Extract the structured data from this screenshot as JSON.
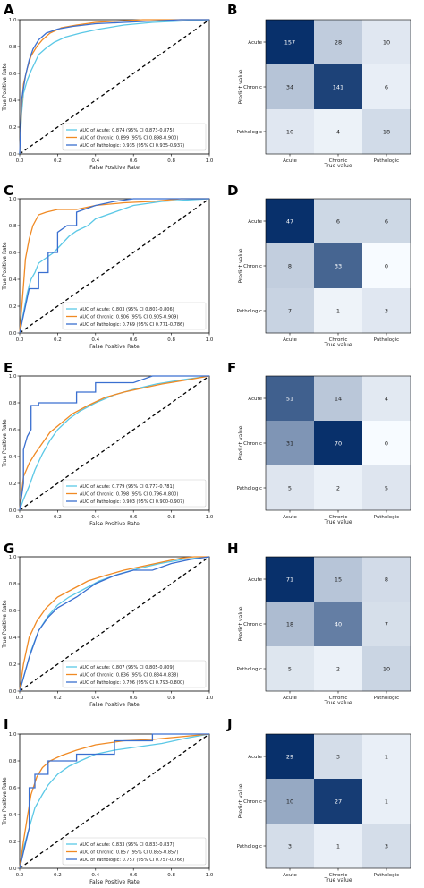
{
  "colors": {
    "Acute": "#5bc8e6",
    "Chronic": "#f08a24",
    "Pathologic": "#3a6fd0",
    "diagonal": "#000000",
    "cm_low": "#f7fbff",
    "cm_high": "#08306b"
  },
  "chart_data": [
    {
      "type": "line",
      "panel": "A",
      "xlabel": "False Positive Rate",
      "ylabel": "True Positive Rate",
      "xlim": [
        0,
        1
      ],
      "ylim": [
        0,
        1
      ],
      "x_ticks": [
        "0.0",
        "0.2",
        "0.4",
        "0.6",
        "0.8",
        "1.0"
      ],
      "y_ticks": [
        "0.0",
        "0.2",
        "0.4",
        "0.6",
        "0.8",
        "1.0"
      ],
      "legend_position": "lower-right",
      "series": [
        {
          "name": "Acute",
          "label": "AUC of Acute: 0.874 (95% CI 0.873-0.875)",
          "x": [
            0,
            0.01,
            0.02,
            0.04,
            0.06,
            0.08,
            0.1,
            0.14,
            0.18,
            0.24,
            0.32,
            0.42,
            0.55,
            0.7,
            0.85,
            1.0
          ],
          "y": [
            0,
            0.3,
            0.45,
            0.55,
            0.62,
            0.68,
            0.74,
            0.79,
            0.83,
            0.87,
            0.9,
            0.93,
            0.96,
            0.98,
            0.99,
            1.0
          ]
        },
        {
          "name": "Chronic",
          "label": "AUC of Chronic: 0.899 (95% CI 0.898-0.900)",
          "x": [
            0,
            0.01,
            0.02,
            0.04,
            0.06,
            0.09,
            0.12,
            0.16,
            0.22,
            0.3,
            0.4,
            0.52,
            0.65,
            0.8,
            1.0
          ],
          "y": [
            0,
            0.35,
            0.52,
            0.64,
            0.73,
            0.8,
            0.85,
            0.9,
            0.94,
            0.96,
            0.98,
            0.99,
            1.0,
            1.0,
            1.0
          ]
        },
        {
          "name": "Pathologic",
          "label": "AUC of Pathologic: 0.935 (95% CI 0.935-0.937)",
          "x": [
            0,
            0.01,
            0.03,
            0.05,
            0.07,
            0.1,
            0.14,
            0.2,
            0.28,
            0.4,
            0.55,
            0.7,
            0.85,
            1.0
          ],
          "y": [
            0,
            0.4,
            0.58,
            0.7,
            0.78,
            0.85,
            0.9,
            0.93,
            0.95,
            0.97,
            0.98,
            0.99,
            1.0,
            1.0
          ]
        }
      ]
    },
    {
      "type": "heatmap",
      "panel": "B",
      "xlabel": "True value",
      "ylabel": "Predict value",
      "x_categories": [
        "Acute",
        "Chronic",
        "Pathologic"
      ],
      "y_categories": [
        "Acute",
        "Chronic",
        "Pathologic"
      ],
      "values": [
        [
          157,
          28,
          10
        ],
        [
          34,
          141,
          6
        ],
        [
          10,
          4,
          18
        ]
      ]
    },
    {
      "type": "line",
      "panel": "C",
      "xlabel": "False Positive Rate",
      "ylabel": "True Positive Rate",
      "xlim": [
        0,
        1
      ],
      "ylim": [
        0,
        1
      ],
      "x_ticks": [
        "0.0",
        "0.2",
        "0.4",
        "0.6",
        "0.8",
        "1.0"
      ],
      "y_ticks": [
        "0.0",
        "0.2",
        "0.4",
        "0.6",
        "0.8",
        "1.0"
      ],
      "legend_position": "lower-right",
      "series": [
        {
          "name": "Acute",
          "label": "AUC of Acute: 0.803 (95% CI 0.801-0.806)",
          "x": [
            0,
            0.02,
            0.04,
            0.06,
            0.08,
            0.1,
            0.14,
            0.18,
            0.22,
            0.26,
            0.3,
            0.36,
            0.4,
            0.5,
            0.6,
            0.75,
            1.0
          ],
          "y": [
            0,
            0.15,
            0.3,
            0.4,
            0.45,
            0.52,
            0.56,
            0.6,
            0.66,
            0.72,
            0.76,
            0.8,
            0.85,
            0.9,
            0.95,
            0.98,
            1.0
          ]
        },
        {
          "name": "Chronic",
          "label": "AUC of Chronic: 0.906 (95% CI 0.905-0.909)",
          "x": [
            0,
            0.02,
            0.03,
            0.05,
            0.07,
            0.1,
            0.14,
            0.2,
            0.3,
            0.4,
            0.55,
            0.7,
            0.85,
            1.0
          ],
          "y": [
            0,
            0.35,
            0.55,
            0.7,
            0.8,
            0.88,
            0.9,
            0.92,
            0.92,
            0.95,
            0.97,
            0.98,
            1.0,
            1.0
          ]
        },
        {
          "name": "Pathologic",
          "label": "AUC of Pathologic: 0.769 (95% CI 0.771-0.786)",
          "x": [
            0,
            0.05,
            0.1,
            0.1,
            0.15,
            0.15,
            0.2,
            0.2,
            0.25,
            0.3,
            0.3,
            0.4,
            0.5,
            0.6,
            0.8,
            1.0
          ],
          "y": [
            0,
            0.33,
            0.33,
            0.45,
            0.45,
            0.6,
            0.6,
            0.75,
            0.8,
            0.8,
            0.9,
            0.95,
            0.98,
            1.0,
            1.0,
            1.0
          ]
        }
      ]
    },
    {
      "type": "heatmap",
      "panel": "D",
      "xlabel": "True value",
      "ylabel": "Predict value",
      "x_categories": [
        "Acute",
        "Chronic",
        "Pathologic"
      ],
      "y_categories": [
        "Acute",
        "Chronic",
        "Pathologic"
      ],
      "values": [
        [
          47,
          6,
          6
        ],
        [
          8,
          33,
          0
        ],
        [
          7,
          1,
          3
        ]
      ]
    },
    {
      "type": "line",
      "panel": "E",
      "xlabel": "False Positive Rate",
      "ylabel": "True Positive Rate",
      "xlim": [
        0,
        1
      ],
      "ylim": [
        0,
        1
      ],
      "x_ticks": [
        "0.0",
        "0.2",
        "0.4",
        "0.6",
        "0.8",
        "1.0"
      ],
      "y_ticks": [
        "0.0",
        "0.2",
        "0.4",
        "0.6",
        "0.8",
        "1.0"
      ],
      "legend_position": "lower-right",
      "series": [
        {
          "name": "Acute",
          "label": "AUC of Acute: 0.779 (95% CI 0.777-0.781)",
          "x": [
            0,
            0.02,
            0.05,
            0.08,
            0.12,
            0.16,
            0.2,
            0.26,
            0.32,
            0.4,
            0.5,
            0.6,
            0.72,
            0.85,
            1.0
          ],
          "y": [
            0,
            0.08,
            0.18,
            0.3,
            0.42,
            0.52,
            0.6,
            0.68,
            0.74,
            0.8,
            0.86,
            0.9,
            0.94,
            0.97,
            1.0
          ]
        },
        {
          "name": "Chronic",
          "label": "AUC of Chronic: 0.798 (95% CI 0.796-0.800)",
          "x": [
            0,
            0.02,
            0.05,
            0.08,
            0.12,
            0.16,
            0.22,
            0.28,
            0.36,
            0.45,
            0.55,
            0.65,
            0.75,
            0.88,
            1.0
          ],
          "y": [
            0,
            0.25,
            0.35,
            0.42,
            0.5,
            0.58,
            0.65,
            0.72,
            0.78,
            0.84,
            0.88,
            0.91,
            0.94,
            0.97,
            1.0
          ]
        },
        {
          "name": "Pathologic",
          "label": "AUC of Pathologic: 0.903 (95% CI 0.900-0.907)",
          "x": [
            0,
            0.02,
            0.02,
            0.04,
            0.06,
            0.06,
            0.1,
            0.1,
            0.3,
            0.3,
            0.4,
            0.4,
            0.6,
            0.7,
            0.85,
            1.0
          ],
          "y": [
            0,
            0.2,
            0.45,
            0.55,
            0.6,
            0.78,
            0.78,
            0.8,
            0.8,
            0.88,
            0.88,
            0.95,
            0.95,
            1.0,
            1.0,
            1.0
          ]
        }
      ]
    },
    {
      "type": "heatmap",
      "panel": "F",
      "xlabel": "True value",
      "ylabel": "Predict value",
      "x_categories": [
        "Acute",
        "Chronic",
        "Pathologic"
      ],
      "y_categories": [
        "Acute",
        "Chronic",
        "Pathologic"
      ],
      "values": [
        [
          51,
          14,
          4
        ],
        [
          31,
          70,
          0
        ],
        [
          5,
          2,
          5
        ]
      ]
    },
    {
      "type": "line",
      "panel": "G",
      "xlabel": "False Positive Rate",
      "ylabel": "True Positive Rate",
      "xlim": [
        0,
        1
      ],
      "ylim": [
        0,
        1
      ],
      "x_ticks": [
        "0.0",
        "0.2",
        "0.4",
        "0.6",
        "0.8",
        "1.0"
      ],
      "y_ticks": [
        "0.0",
        "0.2",
        "0.4",
        "0.6",
        "0.8",
        "1.0"
      ],
      "legend_position": "lower-right",
      "series": [
        {
          "name": "Acute",
          "label": "AUC of Acute: 0.807 (95% CI 0.805-0.809)",
          "x": [
            0,
            0.03,
            0.06,
            0.1,
            0.15,
            0.2,
            0.26,
            0.34,
            0.42,
            0.52,
            0.62,
            0.74,
            0.86,
            1.0
          ],
          "y": [
            0,
            0.15,
            0.3,
            0.45,
            0.56,
            0.64,
            0.7,
            0.76,
            0.82,
            0.87,
            0.91,
            0.95,
            0.98,
            1.0
          ]
        },
        {
          "name": "Chronic",
          "label": "AUC of Chronic: 0.836 (95% CI 0.834-0.838)",
          "x": [
            0,
            0.02,
            0.05,
            0.09,
            0.14,
            0.2,
            0.28,
            0.36,
            0.45,
            0.55,
            0.65,
            0.75,
            0.85,
            0.92,
            1.0
          ],
          "y": [
            0,
            0.2,
            0.4,
            0.52,
            0.62,
            0.7,
            0.76,
            0.82,
            0.86,
            0.9,
            0.93,
            0.96,
            0.99,
            1.0,
            1.0
          ]
        },
        {
          "name": "Pathologic",
          "label": "AUC of Pathologic: 0.796 (95% CI 0.793-0.800)",
          "x": [
            0,
            0.05,
            0.1,
            0.15,
            0.2,
            0.3,
            0.4,
            0.5,
            0.6,
            0.7,
            0.8,
            0.9,
            1.0
          ],
          "y": [
            0,
            0.25,
            0.45,
            0.55,
            0.62,
            0.7,
            0.8,
            0.86,
            0.9,
            0.9,
            0.95,
            0.98,
            1.0
          ]
        }
      ]
    },
    {
      "type": "heatmap",
      "panel": "H",
      "xlabel": "True value",
      "ylabel": "Predict value",
      "x_categories": [
        "Acute",
        "Chronic",
        "Pathologic"
      ],
      "y_categories": [
        "Acute",
        "Chronic",
        "Pathologic"
      ],
      "values": [
        [
          71,
          15,
          8
        ],
        [
          18,
          40,
          7
        ],
        [
          5,
          2,
          10
        ]
      ]
    },
    {
      "type": "line",
      "panel": "I",
      "xlabel": "False Positive Rate",
      "ylabel": "True Positive Rate",
      "xlim": [
        0,
        1
      ],
      "ylim": [
        0,
        1
      ],
      "x_ticks": [
        "0.0",
        "0.2",
        "0.4",
        "0.6",
        "0.8",
        "1.0"
      ],
      "y_ticks": [
        "0.0",
        "0.2",
        "0.4",
        "0.6",
        "0.8",
        "1.0"
      ],
      "legend_position": "lower-right",
      "series": [
        {
          "name": "Acute",
          "label": "AUC of Acute: 0.833 (95% CI 0.833-0.837)",
          "x": [
            0,
            0.02,
            0.05,
            0.08,
            0.12,
            0.15,
            0.2,
            0.26,
            0.32,
            0.4,
            0.5,
            0.6,
            0.75,
            0.88,
            1.0
          ],
          "y": [
            0,
            0.15,
            0.3,
            0.45,
            0.55,
            0.62,
            0.7,
            0.76,
            0.8,
            0.85,
            0.88,
            0.9,
            0.93,
            0.97,
            1.0
          ]
        },
        {
          "name": "Chronic",
          "label": "AUC of Chronic: 0.857 (95% CI 0.855-0.857)",
          "x": [
            0,
            0.02,
            0.04,
            0.06,
            0.09,
            0.12,
            0.16,
            0.22,
            0.3,
            0.4,
            0.55,
            0.7,
            0.85,
            1.0
          ],
          "y": [
            0,
            0.2,
            0.38,
            0.55,
            0.68,
            0.75,
            0.8,
            0.84,
            0.88,
            0.92,
            0.95,
            0.96,
            0.98,
            1.0
          ]
        },
        {
          "name": "Pathologic",
          "label": "AUC of Pathologic: 0.757 (95% CI 0.757-0.766)",
          "x": [
            0,
            0.05,
            0.05,
            0.08,
            0.08,
            0.15,
            0.15,
            0.3,
            0.3,
            0.5,
            0.5,
            0.7,
            0.7,
            1.0
          ],
          "y": [
            0,
            0.3,
            0.6,
            0.6,
            0.7,
            0.7,
            0.8,
            0.8,
            0.85,
            0.85,
            0.95,
            0.95,
            1.0,
            1.0
          ]
        }
      ]
    },
    {
      "type": "heatmap",
      "panel": "J",
      "xlabel": "True value",
      "ylabel": "Predict value",
      "x_categories": [
        "Acute",
        "Chronic",
        "Pathologic"
      ],
      "y_categories": [
        "Acute",
        "Chronic",
        "Pathologic"
      ],
      "values": [
        [
          29,
          3,
          1
        ],
        [
          10,
          27,
          1
        ],
        [
          3,
          1,
          3
        ]
      ]
    }
  ]
}
